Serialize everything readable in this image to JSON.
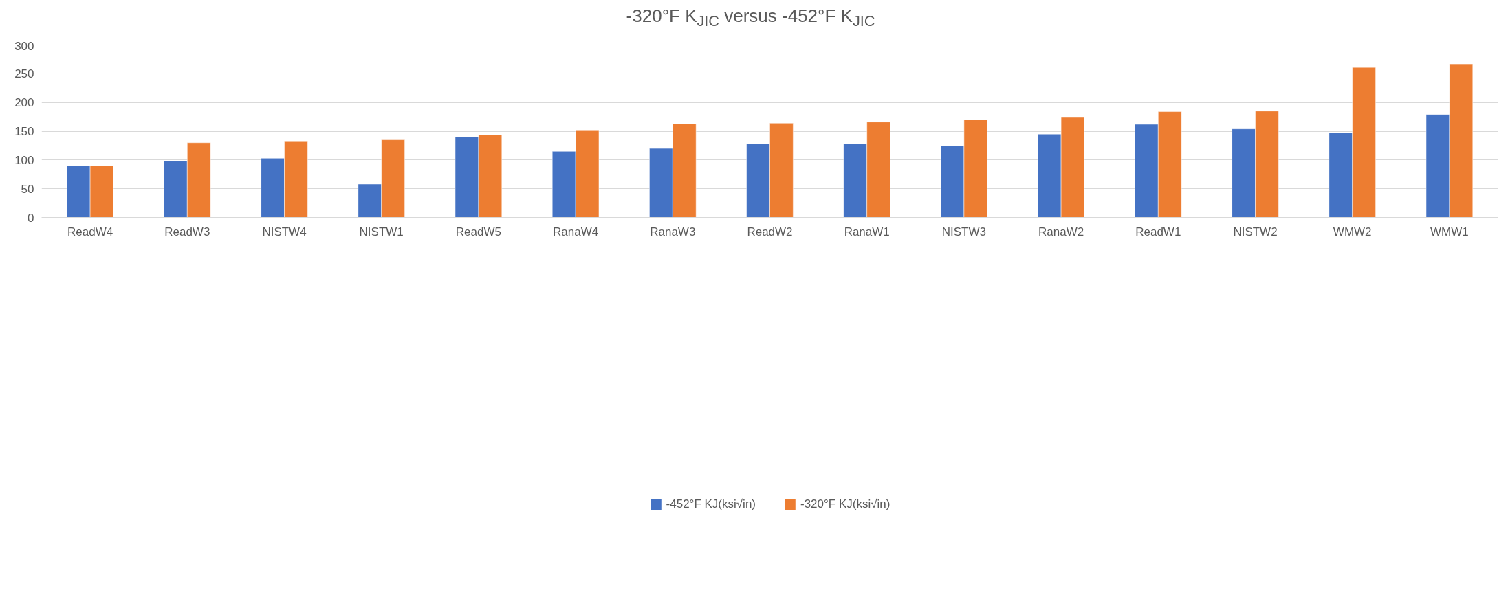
{
  "chart_data": {
    "type": "bar",
    "title": "-320°F K$_{JIC}$ versus -452°F K$_{JIC}$",
    "categories": [
      "ReadW4",
      "ReadW3",
      "NISTW4",
      "NISTW1",
      "ReadW5",
      "RanaW4",
      "RanaW3",
      "ReadW2",
      "RanaW1",
      "NISTW3",
      "RanaW2",
      "ReadW1",
      "NISTW2",
      "WMW2",
      "WMW1"
    ],
    "series": [
      {
        "name": "-452°F KJ(ksi√in)",
        "color": "#4472c4",
        "values": [
          90,
          98,
          103,
          58,
          140,
          115,
          120,
          128,
          128,
          125,
          145,
          162,
          154,
          147,
          179
        ]
      },
      {
        "name": "-320°F KJ(ksi√in)",
        "color": "#ed7d31",
        "values": [
          90,
          130,
          133,
          135,
          144,
          152,
          163,
          164,
          166,
          170,
          174,
          184,
          185,
          261,
          267
        ]
      }
    ],
    "ylim": [
      0,
      300
    ],
    "yticks": [
      0,
      50,
      100,
      150,
      200,
      250,
      300
    ],
    "grid": "y",
    "legend": "bottom"
  }
}
